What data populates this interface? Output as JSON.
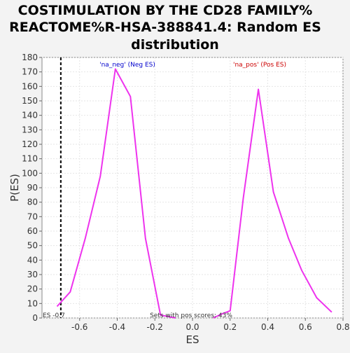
{
  "chart_data": {
    "type": "line",
    "title_lines": [
      "COSTIMULATION BY THE CD28 FAMILY%",
      "REACTOME%R-HSA-388841.4: Random ES",
      "distribution"
    ],
    "xlabel": "ES",
    "ylabel": "P(ES)",
    "xlim": [
      -0.8,
      0.8
    ],
    "ylim": [
      0,
      180
    ],
    "x_ticks": [
      -0.6,
      -0.4,
      -0.2,
      0.0,
      0.2,
      0.4,
      0.6,
      0.8
    ],
    "x_tick_labels": [
      "-0.6",
      "-0.4",
      "-0.2",
      "0.0",
      "0.2",
      "0.4",
      "0.6",
      "0.8"
    ],
    "y_ticks": [
      0,
      10,
      20,
      30,
      40,
      50,
      60,
      70,
      80,
      90,
      100,
      110,
      120,
      130,
      140,
      150,
      160,
      170,
      180
    ],
    "y_tick_labels": [
      "0",
      "10",
      "20",
      "30",
      "40",
      "50",
      "60",
      "70",
      "80",
      "90",
      "100",
      "110",
      "120",
      "130",
      "140",
      "150",
      "160",
      "170",
      "180"
    ],
    "grid": true,
    "line_color": "#ee33ee",
    "series": [
      {
        "name": "'na_neg' (Neg ES)",
        "legend_color": "#0000cc",
        "x": [
          -0.72,
          -0.65,
          -0.57,
          -0.49,
          -0.41,
          -0.33,
          -0.25,
          -0.17,
          -0.09
        ],
        "y": [
          8,
          18,
          55,
          98,
          172,
          153,
          55,
          2,
          0
        ]
      },
      {
        "name": "'na_pos' (Pos ES)",
        "legend_color": "#cc0000",
        "x": [
          0.11,
          0.16,
          0.2,
          0.27,
          0.35,
          0.43,
          0.51,
          0.58,
          0.66,
          0.74
        ],
        "y": [
          0,
          3,
          5,
          83,
          158,
          87,
          55,
          33,
          14,
          4
        ]
      }
    ],
    "es_marker": {
      "x": -0.7,
      "label": "ES -0.7",
      "style": "dashed",
      "color": "#000000"
    },
    "annotation": "Sets with pos scores: 43%"
  }
}
